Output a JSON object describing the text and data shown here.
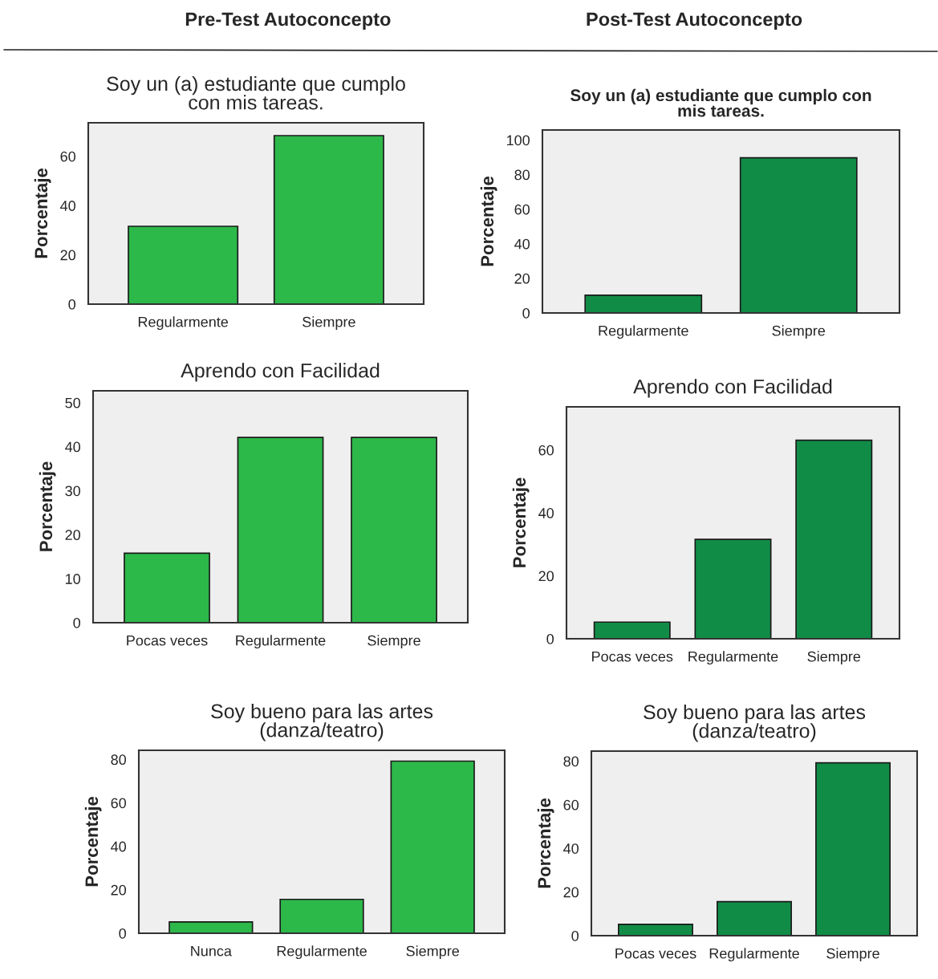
{
  "chart_data": [
    {
      "type": "bar",
      "title": "Soy un (a) estudiante que cumplo\ncon mis tareas.",
      "ylabel": "Porcentaje",
      "annotations": [
        "Pre-Test Autoconcepto"
      ],
      "categories": [
        "Regularmente",
        "Siempre"
      ],
      "values": [
        31.6,
        68.4
      ],
      "color": "#2db84a",
      "ylim": [
        0,
        73.6
      ],
      "yticks": [
        0,
        20,
        40,
        60
      ],
      "grid": false,
      "legend": false
    },
    {
      "type": "bar",
      "title": "Soy un (a) estudiante que cumplo con\nmis tareas.",
      "ylabel": "Porcentaje",
      "annotations": [
        "Post-Test Autoconcepto"
      ],
      "categories": [
        "Regularmente",
        "Siempre"
      ],
      "values": [
        10.3,
        89.7
      ],
      "color": "#118c47",
      "ylim": [
        0,
        105.8
      ],
      "yticks": [
        0,
        20,
        40,
        60,
        80,
        100
      ],
      "grid": false,
      "legend": false
    },
    {
      "type": "bar",
      "title": "Aprendo con Facilidad",
      "ylabel": "Porcentaje",
      "categories": [
        "Pocas veces",
        "Regularmente",
        "Siempre"
      ],
      "values": [
        15.8,
        42.1,
        42.1
      ],
      "color": "#2db84a",
      "ylim": [
        0,
        52.7
      ],
      "yticks": [
        0,
        10,
        20,
        30,
        40,
        50
      ],
      "grid": false,
      "legend": false
    },
    {
      "type": "bar",
      "title": "Aprendo con Facilidad",
      "ylabel": "Porcentaje",
      "categories": [
        "Pocas veces",
        "Regularmente",
        "Siempre"
      ],
      "values": [
        5.3,
        31.6,
        63.1
      ],
      "color": "#118c47",
      "ylim": [
        0,
        73.7
      ],
      "yticks": [
        0,
        20,
        40,
        60
      ],
      "grid": false,
      "legend": false
    },
    {
      "type": "bar",
      "title": "Soy bueno para las artes\n(danza/teatro)",
      "ylabel": "Porcentaje",
      "categories": [
        "Nunca",
        "Regularmente",
        "Siempre"
      ],
      "values": [
        5.2,
        15.6,
        79.2
      ],
      "color": "#2db84a",
      "ylim": [
        0,
        84.2
      ],
      "yticks": [
        0,
        20,
        40,
        60,
        80
      ],
      "grid": false,
      "legend": false
    },
    {
      "type": "bar",
      "title": "Soy bueno para las artes\n(danza/teatro)",
      "ylabel": "Porcentaje",
      "categories": [
        "Pocas veces",
        "Regularmente",
        "Siempre"
      ],
      "values": [
        5.2,
        15.6,
        79.2
      ],
      "color": "#118c47",
      "ylim": [
        0,
        84.6
      ],
      "yticks": [
        0,
        20,
        40,
        60,
        80
      ],
      "grid": false,
      "legend": false
    }
  ]
}
